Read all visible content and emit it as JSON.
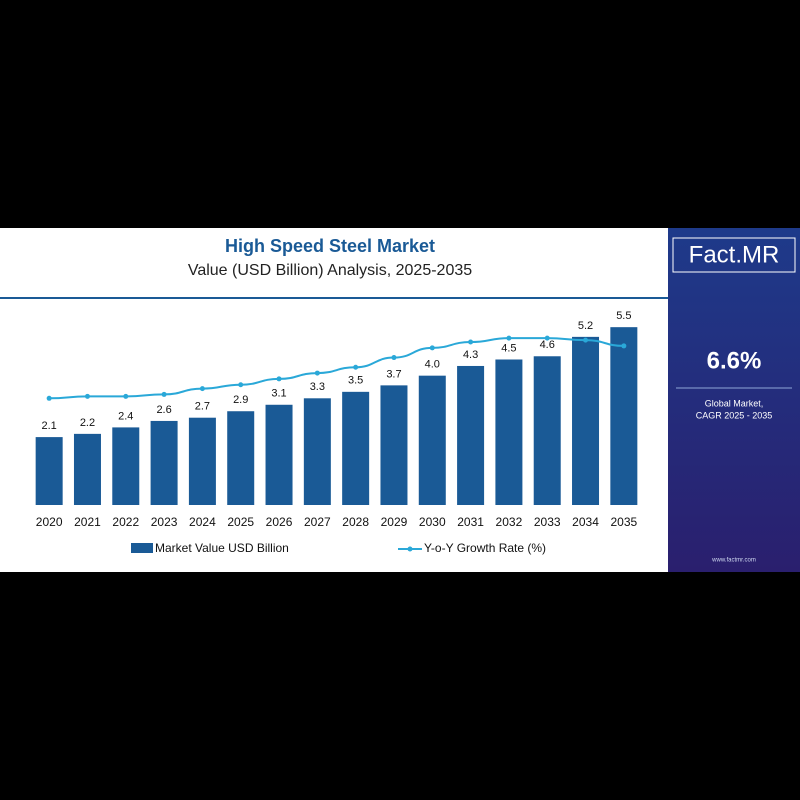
{
  "chart_data": {
    "type": "bar",
    "title": "High Speed Steel Market",
    "subtitle": "Value (USD Billion) Analysis, 2025-2035",
    "categories": [
      "2020",
      "2021",
      "2022",
      "2023",
      "2024",
      "2025",
      "2026",
      "2027",
      "2028",
      "2029",
      "2030",
      "2031",
      "2032",
      "2033",
      "2034",
      "2035"
    ],
    "series": [
      {
        "name": "Market Value USD Billion",
        "color": "#1a5a96",
        "values": [
          2.1,
          2.2,
          2.4,
          2.6,
          2.7,
          2.9,
          3.1,
          3.3,
          3.5,
          3.7,
          4.0,
          4.3,
          4.5,
          4.6,
          5.2,
          5.5
        ],
        "value_labels": [
          "2.1",
          "2.2",
          "2.4",
          "2.6",
          "2.7",
          "2.9",
          "3.1",
          "3.3",
          "3.5",
          "3.7",
          "4.0",
          "4.3",
          "4.5",
          "4.6",
          "5.2",
          "5.5"
        ]
      },
      {
        "name": "Y-o-Y Growth Rate (%)",
        "color": "#2aa8d8",
        "type": "line",
        "axis": "y2",
        "values": [
          5.5,
          5.6,
          5.6,
          5.7,
          6.0,
          6.2,
          6.5,
          6.8,
          7.1,
          7.6,
          8.1,
          8.4,
          8.6,
          8.6,
          8.5,
          8.2
        ]
      }
    ],
    "ylim": [
      0,
      6
    ],
    "y2lim": [
      0,
      10
    ],
    "sidebar": {
      "logo": "Fact.MR",
      "cagr": "6.6%",
      "caption": [
        "Global Market,",
        "CAGR 2025 - 2035"
      ],
      "url": "www.factmr.com"
    }
  }
}
